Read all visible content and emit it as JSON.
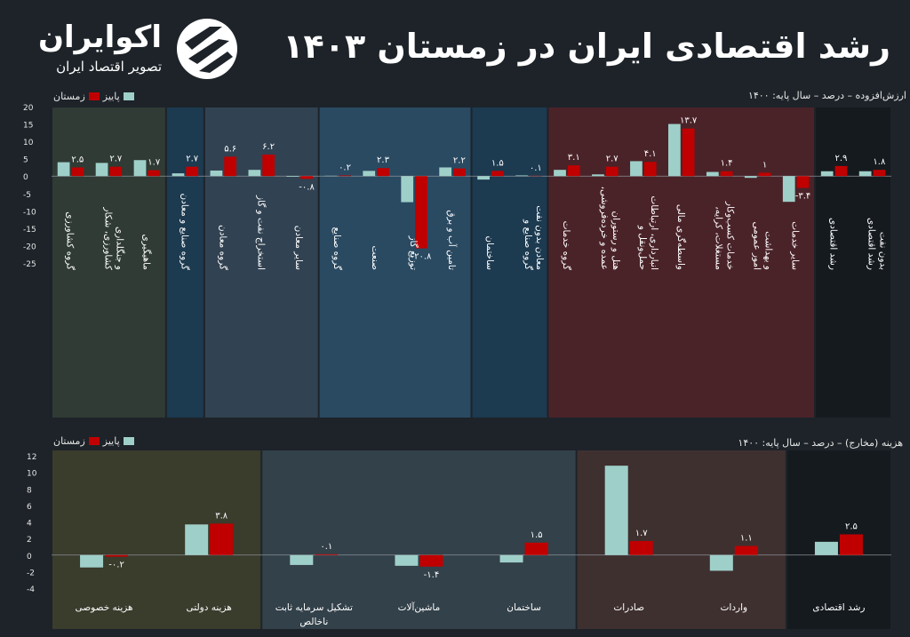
{
  "brand": {
    "name": "اکوایران",
    "tagline": "تصویر اقتصاد ایران"
  },
  "title": "رشد اقتصادی ایران در زمستان ۱۴۰۳",
  "colors": {
    "autumn": "#9fcfc9",
    "winter": "#c00000",
    "bg": "#1d2329"
  },
  "legend": {
    "autumn": "پاییز",
    "winter": "زمستان"
  },
  "chart_data": [
    {
      "type": "bar",
      "ylabel": "ارزش‌افزوده – درصد – سال پایه: ۱۴۰۰",
      "ylim": [
        -25,
        20
      ],
      "yticks": [
        "20",
        "15",
        "10",
        "5",
        "0",
        "-5",
        "-10",
        "-15",
        "-20",
        "-25"
      ],
      "categories": [
        "گروه کشاورزی",
        "کشاورزی، شکار و جنگلداری",
        "ماهیگیری",
        "گروه صنایع و معادن",
        "گروه معادن",
        "استخراج نفت و گاز",
        "سایر معادن",
        "گروه صنایع",
        "صنعت",
        "توزیع گاز",
        "تامین آب و برق",
        "ساختمان",
        "گروه صنایع و معادن بدون نفت",
        "گروه خدمات",
        "عمده و خرده‌فروشی، هتل و رستوران",
        "حمل‌ونقل و انبارداری، ارتباطات",
        "واسطه‌گری مالی",
        "مستغلات، کرایه، خدمات کسب‌وکار",
        "امور عمومی و بهداشت",
        "سایر خدمات",
        "رشد اقتصادی",
        "رشد اقتصادی بدون نفت"
      ],
      "series": [
        {
          "name": "پاییز",
          "values": [
            4.0,
            3.8,
            4.6,
            0.8,
            1.6,
            1.8,
            -0.2,
            0.1,
            1.5,
            -7.5,
            2.5,
            -1.0,
            0.2,
            1.8,
            0.5,
            4.3,
            15.0,
            1.2,
            -0.5,
            -7.4,
            1.4,
            1.4
          ]
        },
        {
          "name": "زمستان",
          "values": [
            2.5,
            2.7,
            1.7,
            2.7,
            5.6,
            6.2,
            -0.8,
            0.2,
            2.3,
            -20.8,
            2.2,
            1.5,
            0.1,
            3.1,
            2.7,
            4.1,
            13.7,
            1.4,
            1.0,
            -3.4,
            2.9,
            1.8
          ]
        }
      ],
      "data_labels": [
        "۲.۵",
        "۲.۷",
        "۱.۷",
        "۲.۷",
        "۵.۶",
        "۶.۲",
        "-۰.۸",
        "۰.۲",
        "۲.۳",
        "-۲۰.۸",
        "۲.۲",
        "۱.۵",
        "۰.۱",
        "۳.۱",
        "۲.۷",
        "۴.۱",
        "۱۳.۷",
        "۱.۴",
        "۱",
        "-۳.۴",
        "۲.۹",
        "۱.۸"
      ],
      "groups": [
        {
          "from": 0,
          "to": 2,
          "color": "#2f3b34"
        },
        {
          "from": 3,
          "to": 3,
          "color": "#1c3a50"
        },
        {
          "from": 4,
          "to": 6,
          "color": "#314252"
        },
        {
          "from": 7,
          "to": 10,
          "color": "#2a4a62"
        },
        {
          "from": 11,
          "to": 12,
          "color": "#1c3a50"
        },
        {
          "from": 13,
          "to": 19,
          "color": "#4a2329"
        },
        {
          "from": 20,
          "to": 21,
          "color": "#151a1f"
        }
      ]
    },
    {
      "type": "bar",
      "ylabel": "هزینه (مخارج) – درصد – سال پایه: ۱۴۰۰",
      "ylim": [
        -4,
        12
      ],
      "yticks": [
        "12",
        "10",
        "8",
        "6",
        "4",
        "2",
        "0",
        "-2",
        "-4"
      ],
      "categories": [
        "هزینه خصوصی",
        "هزینه دولتی",
        "تشکیل سرمایه ثابت ناخالص",
        "ماشین‌آلات",
        "ساختمان",
        "صادرات",
        "واردات",
        "رشد اقتصادی"
      ],
      "series": [
        {
          "name": "پاییز",
          "values": [
            -1.5,
            3.7,
            -1.2,
            -1.3,
            -0.9,
            10.8,
            -1.9,
            1.6
          ]
        },
        {
          "name": "زمستان",
          "values": [
            -0.2,
            3.8,
            0.1,
            -1.4,
            1.5,
            1.7,
            1.1,
            2.5
          ]
        }
      ],
      "data_labels": [
        "-۰.۲",
        "۳.۸",
        "۰.۱",
        "-۱.۴",
        "۱.۵",
        "۱.۷",
        "۱.۱",
        "۲.۵"
      ],
      "groups": [
        {
          "from": 0,
          "to": 1,
          "color": "#3a3c2c"
        },
        {
          "from": 2,
          "to": 4,
          "color": "#33414a"
        },
        {
          "from": 5,
          "to": 6,
          "color": "#3f3030"
        },
        {
          "from": 7,
          "to": 7,
          "color": "#151a1f"
        }
      ]
    }
  ]
}
